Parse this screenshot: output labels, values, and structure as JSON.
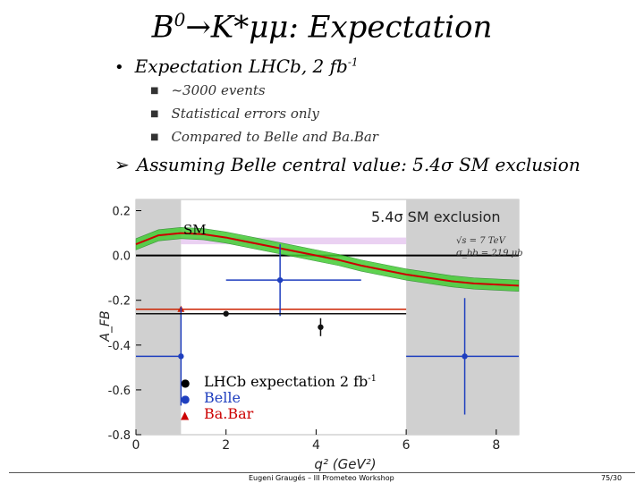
{
  "slide": {
    "title_pre": "B",
    "title_sup": "0",
    "title_post": "→K*μμ: Expectation",
    "bullet1_pre": "Expectation LHCb, 2 fb",
    "bullet1_sup": "-1",
    "sub_items": [
      "~3000 events",
      "Statistical errors only",
      "Compared to Belle and Ba.Bar"
    ],
    "bullet2": "Assuming Belle central value: 5.4σ SM exclusion"
  },
  "chart_data": {
    "type": "scatter",
    "xlabel": "q² (GeV²)",
    "ylabel": "A_FB",
    "xlim": [
      0,
      8.5
    ],
    "ylim": [
      -0.8,
      0.25
    ],
    "x_ticks": [
      "0",
      "2",
      "4",
      "6",
      "8"
    ],
    "y_ticks": [
      "0.2",
      "0.0",
      "-0.2",
      "-0.4",
      "-0.6",
      "-0.8"
    ],
    "annotations": {
      "exclusion": "5.4σ SM exclusion",
      "sm": "SM",
      "energy": "√s = 7 TeV",
      "xsec": "σ_bb = 219 μb"
    },
    "legend": [
      {
        "label": "LHCb expectation 2 fb",
        "sup": "-1",
        "marker": "●",
        "color": "#000000"
      },
      {
        "label": "Belle",
        "sup": "",
        "marker": "●",
        "color": "#1f3fbf"
      },
      {
        "label": "Ba.Bar",
        "sup": "",
        "marker": "▲",
        "color": "#cc0000"
      }
    ],
    "sm_curve": {
      "x": [
        0,
        0.5,
        1,
        1.5,
        2,
        2.5,
        3,
        3.5,
        4,
        4.5,
        5,
        5.5,
        6,
        6.5,
        7,
        7.5,
        8,
        8.5
      ],
      "y": [
        0.05,
        0.09,
        0.1,
        0.095,
        0.08,
        0.06,
        0.04,
        0.02,
        0.0,
        -0.02,
        -0.045,
        -0.065,
        -0.085,
        -0.1,
        -0.115,
        -0.125,
        -0.13,
        -0.135
      ]
    },
    "sm_band_halfwidth": 0.025,
    "lhcb_points": [
      {
        "x": 4.1,
        "y": -0.32,
        "xerr": [
          0.0,
          0.0
        ],
        "yerr": 0.04
      },
      {
        "x": 2.0,
        "y": -0.26,
        "xerr": [
          2.0,
          4.0
        ],
        "yerr": 0.0
      }
    ],
    "belle_points": [
      {
        "x": 3.2,
        "y": -0.11,
        "xerr": [
          1.2,
          1.8
        ],
        "yerr": 0.16
      },
      {
        "x": 1.0,
        "y": -0.45,
        "xerr": [
          1.0,
          0.0
        ],
        "yerr": 0.22
      },
      {
        "x": 7.3,
        "y": -0.45,
        "xerr": [
          1.3,
          1.2
        ],
        "yerr": 0.26
      }
    ],
    "babar_points": [
      {
        "x": 1.0,
        "y": -0.24,
        "xerr": [
          1.0,
          5.0
        ],
        "yerr": 0.0
      }
    ],
    "veto_bands": [
      [
        0,
        1
      ],
      [
        6,
        8.5
      ]
    ],
    "bg_measurement_band": {
      "y": [
        0.05,
        0.08
      ],
      "x": [
        1,
        6
      ]
    }
  },
  "footer": {
    "text": "Eugeni Graugés – III Prometeo Workshop",
    "page": "75/30"
  }
}
